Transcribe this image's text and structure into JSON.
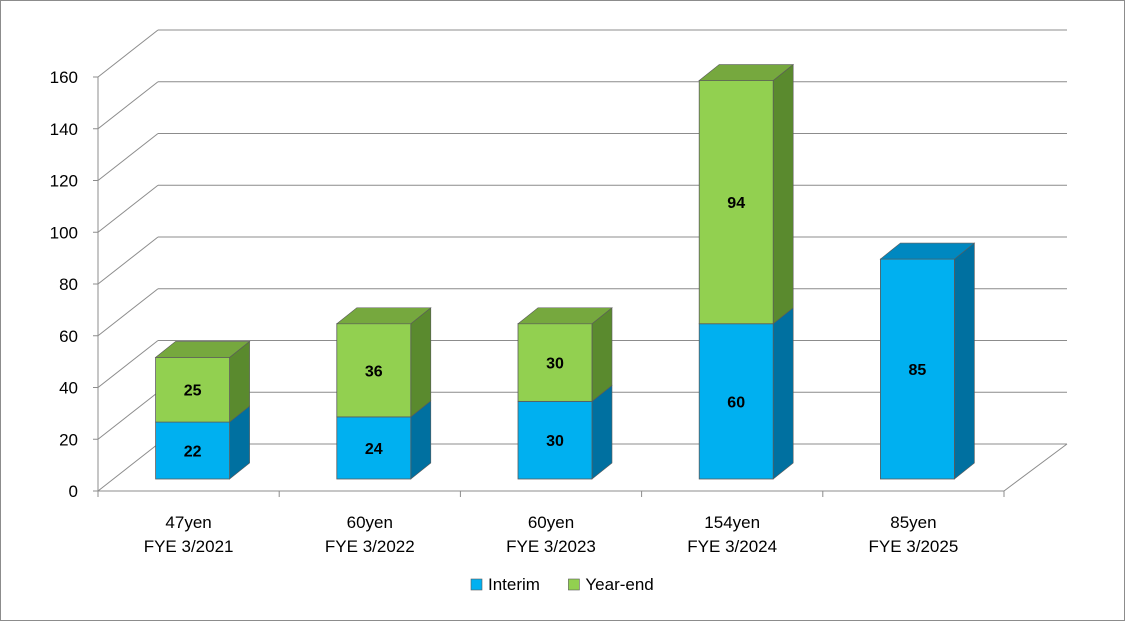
{
  "chart_data": {
    "type": "bar",
    "stacked": true,
    "three_d": true,
    "categories": [
      [
        "47yen",
        "FYE 3/2021"
      ],
      [
        "60yen",
        "FYE 3/2022"
      ],
      [
        "60yen",
        "FYE 3/2023"
      ],
      [
        "154yen",
        "FYE 3/2024"
      ],
      [
        "85yen",
        "FYE 3/2025"
      ]
    ],
    "series": [
      {
        "name": "Interim",
        "values": [
          22,
          24,
          30,
          60,
          85
        ],
        "colors": {
          "front": "#00B0F0",
          "side": "#0070A0",
          "top": "#0088C0"
        }
      },
      {
        "name": "Year-end",
        "values": [
          25,
          36,
          30,
          94,
          null
        ],
        "colors": {
          "front": "#92D050",
          "side": "#5A8A2E",
          "top": "#76A83E"
        }
      }
    ],
    "yticks": [
      0,
      20,
      40,
      60,
      80,
      100,
      120,
      140,
      160
    ],
    "ylim": [
      0,
      160
    ],
    "grid": true,
    "legend": "bottom",
    "title": "",
    "xlabel": "",
    "ylabel": ""
  }
}
